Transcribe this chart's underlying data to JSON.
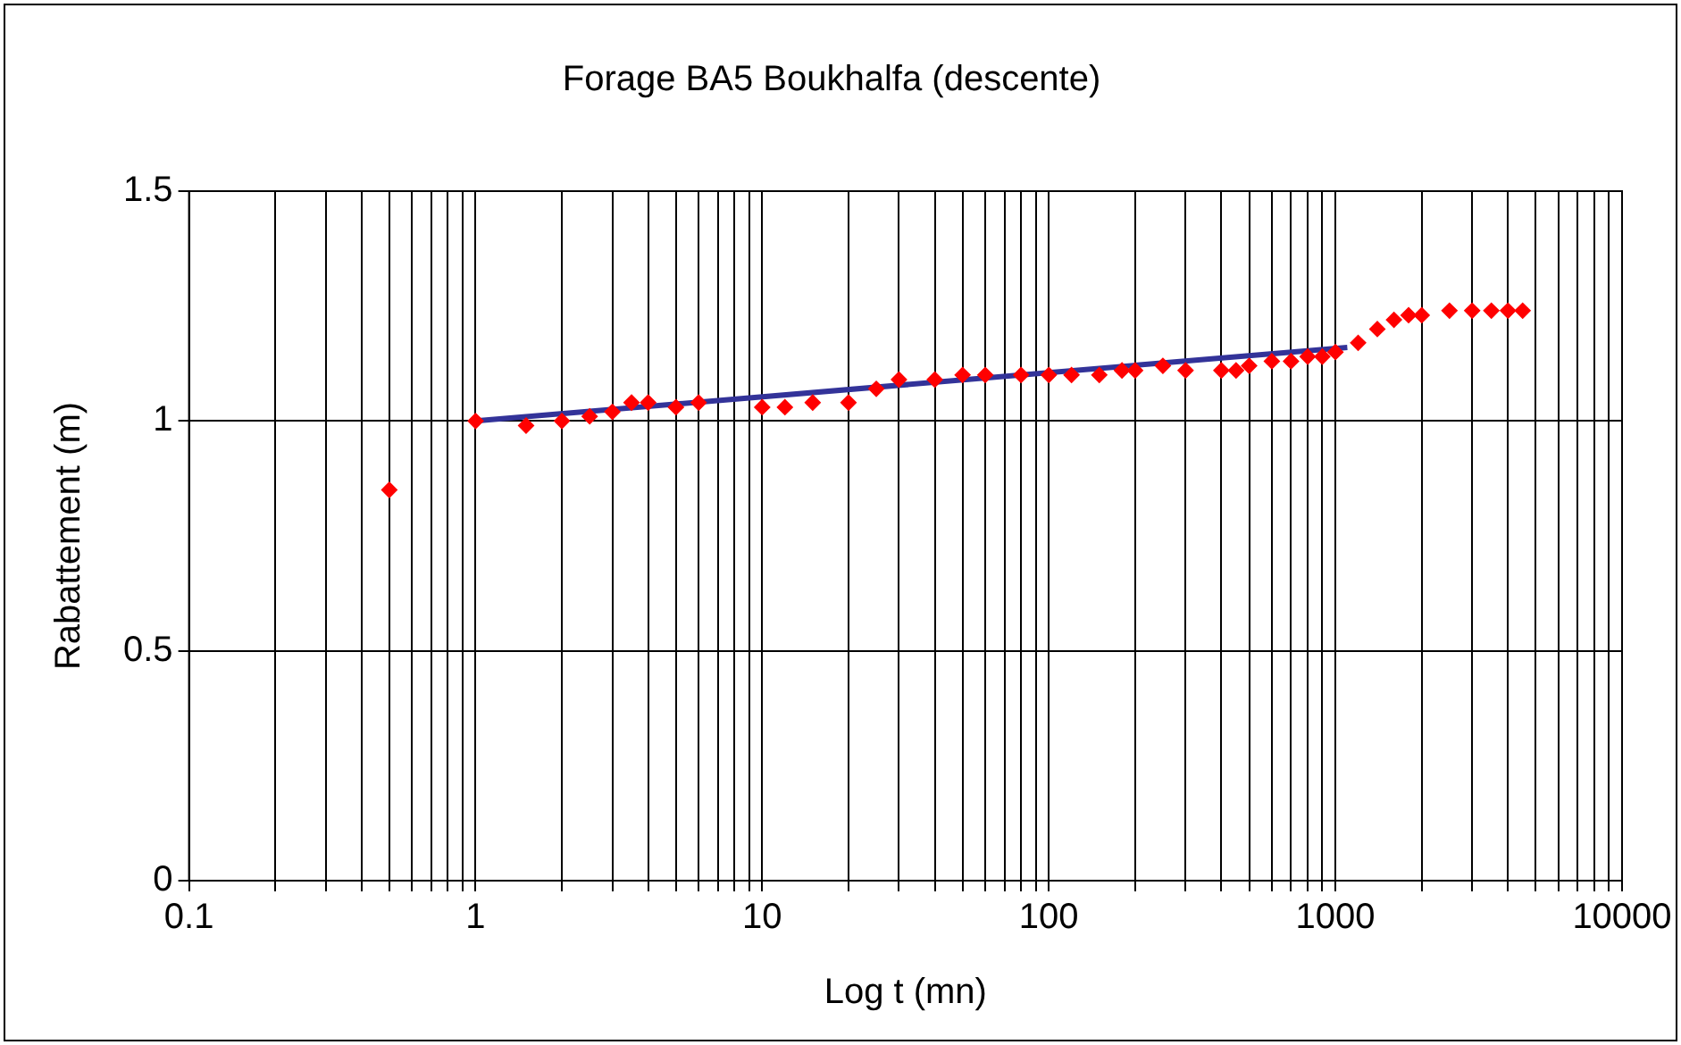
{
  "chart_data": {
    "type": "scatter",
    "title": "Forage BA5 Boukhalfa (descente)",
    "xlabel": "Log t (mn)",
    "ylabel": "Rabattement (m)",
    "log": "x",
    "xlim": [
      0.1,
      10000
    ],
    "xticks": [
      0.1,
      1,
      10,
      100,
      1000,
      10000
    ],
    "ylim": [
      0,
      1.5
    ],
    "yticks": [
      0,
      0.5,
      1,
      1.5
    ],
    "grid": true,
    "legend": false,
    "series": [
      {
        "marker": "diamond",
        "color": "#ff0000",
        "x": [
          0.5,
          1,
          1.5,
          2,
          2.5,
          3,
          3.5,
          4,
          5,
          6,
          10,
          12,
          15,
          20,
          25,
          30,
          40,
          50,
          60,
          80,
          100,
          120,
          150,
          180,
          200,
          250,
          300,
          400,
          450,
          500,
          600,
          700,
          800,
          900,
          1000,
          1200,
          1400,
          1600,
          1800,
          2000,
          2500,
          3000,
          3500,
          4000,
          4500
        ],
        "values": [
          0.85,
          1.0,
          0.99,
          1.0,
          1.01,
          1.02,
          1.04,
          1.04,
          1.03,
          1.04,
          1.03,
          1.03,
          1.04,
          1.04,
          1.07,
          1.09,
          1.09,
          1.1,
          1.1,
          1.1,
          1.1,
          1.1,
          1.1,
          1.11,
          1.11,
          1.12,
          1.11,
          1.11,
          1.11,
          1.12,
          1.13,
          1.13,
          1.14,
          1.14,
          1.15,
          1.17,
          1.2,
          1.22,
          1.23,
          1.23,
          1.24,
          1.24,
          1.24,
          1.24,
          1.24
        ]
      },
      {
        "type": "line",
        "marker": "none",
        "color": "#333399",
        "x": [
          1,
          1100
        ],
        "values": [
          1.0,
          1.16
        ]
      }
    ]
  }
}
